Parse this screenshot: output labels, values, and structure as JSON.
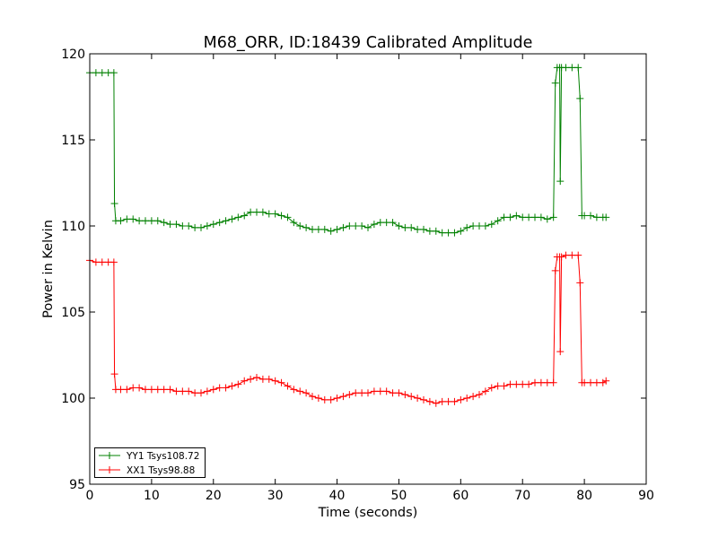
{
  "chart_data": {
    "type": "line",
    "title": "M68_ORR, ID:18439 Calibrated Amplitude",
    "xlabel": "Time (seconds)",
    "ylabel": "Power in Kelvin",
    "xlim": [
      0,
      90
    ],
    "ylim": [
      95,
      120
    ],
    "xticks": [
      0,
      10,
      20,
      30,
      40,
      50,
      60,
      70,
      80,
      90
    ],
    "yticks": [
      95,
      100,
      105,
      110,
      115,
      120
    ],
    "grid": false,
    "legend_position": "bottom-left",
    "series": [
      {
        "name": "YY1 Tsys108.72",
        "color": "#008000",
        "x": [
          0,
          1,
          2,
          3,
          3.9,
          4.0,
          4.2,
          5,
          6,
          7,
          8,
          9,
          10,
          11,
          12,
          13,
          14,
          15,
          16,
          17,
          18,
          19,
          20,
          21,
          22,
          23,
          24,
          25,
          26,
          27,
          28,
          29,
          30,
          31,
          32,
          33,
          34,
          35,
          36,
          37,
          38,
          39,
          40,
          41,
          42,
          43,
          44,
          45,
          46,
          47,
          48,
          49,
          50,
          51,
          52,
          53,
          54,
          55,
          56,
          57,
          58,
          59,
          60,
          61,
          62,
          63,
          64,
          65,
          66,
          67,
          68,
          69,
          70,
          71,
          72,
          73,
          74,
          75.0,
          75.3,
          75.6,
          76.0,
          76.1,
          76.3,
          77,
          78,
          79.0,
          79.3,
          79.6,
          80,
          81,
          82,
          83,
          83.5
        ],
        "values": [
          118.9,
          118.9,
          118.9,
          118.9,
          118.9,
          111.3,
          110.3,
          110.3,
          110.4,
          110.4,
          110.3,
          110.3,
          110.3,
          110.3,
          110.2,
          110.1,
          110.1,
          110.0,
          110.0,
          109.9,
          109.9,
          110.0,
          110.1,
          110.2,
          110.3,
          110.4,
          110.5,
          110.6,
          110.8,
          110.8,
          110.8,
          110.7,
          110.7,
          110.6,
          110.5,
          110.2,
          110.0,
          109.9,
          109.8,
          109.8,
          109.8,
          109.7,
          109.8,
          109.9,
          110.0,
          110.0,
          110.0,
          109.9,
          110.1,
          110.2,
          110.2,
          110.2,
          110.0,
          109.9,
          109.9,
          109.8,
          109.8,
          109.7,
          109.7,
          109.6,
          109.6,
          109.6,
          109.7,
          109.9,
          110.0,
          110.0,
          110.0,
          110.1,
          110.3,
          110.5,
          110.5,
          110.6,
          110.5,
          110.5,
          110.5,
          110.5,
          110.4,
          110.5,
          118.3,
          119.2,
          119.2,
          112.6,
          119.2,
          119.2,
          119.2,
          119.2,
          117.4,
          110.6,
          110.6,
          110.6,
          110.5,
          110.5,
          110.5
        ]
      },
      {
        "name": "XX1 Tsys98.88",
        "color": "#ff0000",
        "x": [
          0,
          1,
          2,
          3,
          3.9,
          4.0,
          4.2,
          5,
          6,
          7,
          8,
          9,
          10,
          11,
          12,
          13,
          14,
          15,
          16,
          17,
          18,
          19,
          20,
          21,
          22,
          23,
          24,
          25,
          26,
          27,
          28,
          29,
          30,
          31,
          32,
          33,
          34,
          35,
          36,
          37,
          38,
          39,
          40,
          41,
          42,
          43,
          44,
          45,
          46,
          47,
          48,
          49,
          50,
          51,
          52,
          53,
          54,
          55,
          56,
          57,
          58,
          59,
          60,
          61,
          62,
          63,
          64,
          65,
          66,
          67,
          68,
          69,
          70,
          71,
          72,
          73,
          74,
          75.0,
          75.3,
          75.6,
          76.0,
          76.1,
          76.3,
          77,
          78,
          79.0,
          79.3,
          79.6,
          80,
          81,
          82,
          83,
          83.5
        ],
        "values": [
          108.0,
          107.9,
          107.9,
          107.9,
          107.9,
          101.4,
          100.5,
          100.5,
          100.5,
          100.6,
          100.6,
          100.5,
          100.5,
          100.5,
          100.5,
          100.5,
          100.4,
          100.4,
          100.4,
          100.3,
          100.3,
          100.4,
          100.5,
          100.6,
          100.6,
          100.7,
          100.8,
          101.0,
          101.1,
          101.2,
          101.1,
          101.1,
          101.0,
          100.9,
          100.7,
          100.5,
          100.4,
          100.3,
          100.1,
          100.0,
          99.9,
          99.9,
          100.0,
          100.1,
          100.2,
          100.3,
          100.3,
          100.3,
          100.4,
          100.4,
          100.4,
          100.3,
          100.3,
          100.2,
          100.1,
          100.0,
          99.9,
          99.8,
          99.7,
          99.8,
          99.8,
          99.8,
          99.9,
          100.0,
          100.1,
          100.2,
          100.4,
          100.6,
          100.7,
          100.7,
          100.8,
          100.8,
          100.8,
          100.8,
          100.9,
          100.9,
          100.9,
          100.9,
          107.4,
          108.2,
          108.2,
          102.7,
          108.2,
          108.3,
          108.3,
          108.3,
          106.7,
          100.9,
          100.9,
          100.9,
          100.9,
          100.9,
          101.0
        ]
      }
    ]
  }
}
